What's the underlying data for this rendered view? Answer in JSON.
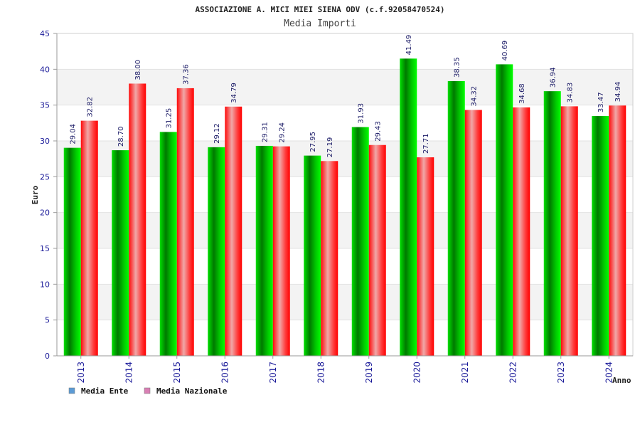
{
  "chart_data": {
    "type": "bar",
    "title": "ASSOCIAZIONE A. MICI MIEI SIENA ODV (c.f.92058470524)",
    "subtitle": "Media Importi",
    "xlabel": "Anno",
    "ylabel": "Euro",
    "ylim": [
      0,
      45
    ],
    "yticks": [
      0,
      5,
      10,
      15,
      20,
      25,
      30,
      35,
      40,
      45
    ],
    "grid": true,
    "legend_position": "bottom-left",
    "categories": [
      "2013",
      "2014",
      "2015",
      "2016",
      "2017",
      "2018",
      "2019",
      "2020",
      "2021",
      "2022",
      "2023",
      "2024"
    ],
    "series": [
      {
        "name": "Media Ente",
        "color": "#00cc00",
        "legend_color": "#5b9bd5",
        "values": [
          29.04,
          28.7,
          31.25,
          29.12,
          29.31,
          27.95,
          31.93,
          41.49,
          38.35,
          40.69,
          36.94,
          33.47
        ],
        "labels": [
          "29.04",
          "28.70",
          "31.25",
          "29.12",
          "29.31",
          "27.95",
          "31.93",
          "41.49",
          "38.35",
          "40.69",
          "36.94",
          "33.47"
        ]
      },
      {
        "name": "Media Nazionale",
        "color": "#ff1a1a",
        "legend_color": "#d97fb4",
        "values": [
          32.82,
          38.0,
          37.36,
          34.79,
          29.24,
          27.19,
          29.43,
          27.71,
          34.32,
          34.68,
          34.83,
          34.94
        ],
        "labels": [
          "32.82",
          "38.00",
          "37.36",
          "34.79",
          "29.24",
          "27.19",
          "29.43",
          "27.71",
          "34.32",
          "34.68",
          "34.83",
          "34.94"
        ]
      }
    ]
  }
}
